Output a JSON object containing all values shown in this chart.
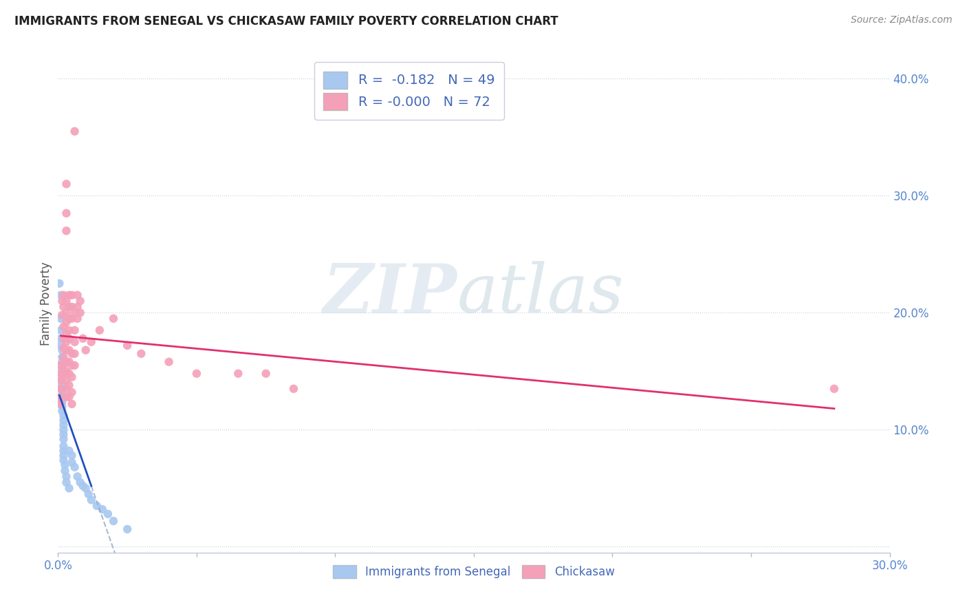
{
  "title": "IMMIGRANTS FROM SENEGAL VS CHICKASAW FAMILY POVERTY CORRELATION CHART",
  "source": "Source: ZipAtlas.com",
  "ylabel": "Family Poverty",
  "xlim": [
    0.0,
    0.3
  ],
  "ylim": [
    -0.005,
    0.42
  ],
  "blue_color": "#a8c8f0",
  "pink_color": "#f4a0b8",
  "blue_line_color": "#2050c0",
  "pink_line_color": "#e03070",
  "dashed_line_color": "#90a8c8",
  "blue_scatter": [
    [
      0.0005,
      0.225
    ],
    [
      0.001,
      0.215
    ],
    [
      0.001,
      0.195
    ],
    [
      0.001,
      0.185
    ],
    [
      0.001,
      0.178
    ],
    [
      0.001,
      0.172
    ],
    [
      0.0015,
      0.168
    ],
    [
      0.0015,
      0.162
    ],
    [
      0.0015,
      0.158
    ],
    [
      0.0015,
      0.152
    ],
    [
      0.0015,
      0.148
    ],
    [
      0.0015,
      0.143
    ],
    [
      0.0015,
      0.138
    ],
    [
      0.0015,
      0.135
    ],
    [
      0.0015,
      0.13
    ],
    [
      0.0015,
      0.127
    ],
    [
      0.0015,
      0.124
    ],
    [
      0.0015,
      0.12
    ],
    [
      0.0015,
      0.116
    ],
    [
      0.002,
      0.112
    ],
    [
      0.002,
      0.108
    ],
    [
      0.002,
      0.104
    ],
    [
      0.002,
      0.1
    ],
    [
      0.002,
      0.096
    ],
    [
      0.002,
      0.092
    ],
    [
      0.002,
      0.086
    ],
    [
      0.002,
      0.082
    ],
    [
      0.002,
      0.078
    ],
    [
      0.002,
      0.074
    ],
    [
      0.0025,
      0.07
    ],
    [
      0.0025,
      0.065
    ],
    [
      0.003,
      0.06
    ],
    [
      0.003,
      0.055
    ],
    [
      0.004,
      0.05
    ],
    [
      0.004,
      0.082
    ],
    [
      0.005,
      0.078
    ],
    [
      0.005,
      0.072
    ],
    [
      0.006,
      0.068
    ],
    [
      0.007,
      0.06
    ],
    [
      0.008,
      0.055
    ],
    [
      0.009,
      0.052
    ],
    [
      0.01,
      0.05
    ],
    [
      0.011,
      0.045
    ],
    [
      0.012,
      0.04
    ],
    [
      0.014,
      0.035
    ],
    [
      0.016,
      0.032
    ],
    [
      0.018,
      0.028
    ],
    [
      0.02,
      0.022
    ],
    [
      0.025,
      0.015
    ]
  ],
  "pink_scatter": [
    [
      0.001,
      0.155
    ],
    [
      0.001,
      0.148
    ],
    [
      0.001,
      0.142
    ],
    [
      0.001,
      0.135
    ],
    [
      0.001,
      0.128
    ],
    [
      0.001,
      0.122
    ],
    [
      0.0015,
      0.21
    ],
    [
      0.0015,
      0.198
    ],
    [
      0.002,
      0.215
    ],
    [
      0.002,
      0.205
    ],
    [
      0.002,
      0.188
    ],
    [
      0.002,
      0.178
    ],
    [
      0.002,
      0.17
    ],
    [
      0.002,
      0.162
    ],
    [
      0.002,
      0.155
    ],
    [
      0.002,
      0.148
    ],
    [
      0.003,
      0.285
    ],
    [
      0.003,
      0.31
    ],
    [
      0.003,
      0.27
    ],
    [
      0.003,
      0.21
    ],
    [
      0.003,
      0.2
    ],
    [
      0.003,
      0.192
    ],
    [
      0.003,
      0.182
    ],
    [
      0.003,
      0.175
    ],
    [
      0.003,
      0.168
    ],
    [
      0.003,
      0.158
    ],
    [
      0.003,
      0.15
    ],
    [
      0.003,
      0.142
    ],
    [
      0.003,
      0.135
    ],
    [
      0.003,
      0.128
    ],
    [
      0.004,
      0.215
    ],
    [
      0.004,
      0.205
    ],
    [
      0.004,
      0.195
    ],
    [
      0.004,
      0.185
    ],
    [
      0.004,
      0.178
    ],
    [
      0.004,
      0.168
    ],
    [
      0.004,
      0.158
    ],
    [
      0.004,
      0.148
    ],
    [
      0.004,
      0.138
    ],
    [
      0.004,
      0.128
    ],
    [
      0.005,
      0.215
    ],
    [
      0.005,
      0.205
    ],
    [
      0.005,
      0.195
    ],
    [
      0.005,
      0.165
    ],
    [
      0.005,
      0.155
    ],
    [
      0.005,
      0.145
    ],
    [
      0.005,
      0.132
    ],
    [
      0.005,
      0.122
    ],
    [
      0.006,
      0.355
    ],
    [
      0.006,
      0.2
    ],
    [
      0.006,
      0.185
    ],
    [
      0.006,
      0.175
    ],
    [
      0.006,
      0.165
    ],
    [
      0.006,
      0.155
    ],
    [
      0.007,
      0.215
    ],
    [
      0.007,
      0.205
    ],
    [
      0.007,
      0.195
    ],
    [
      0.008,
      0.21
    ],
    [
      0.008,
      0.2
    ],
    [
      0.009,
      0.178
    ],
    [
      0.01,
      0.168
    ],
    [
      0.012,
      0.175
    ],
    [
      0.015,
      0.185
    ],
    [
      0.02,
      0.195
    ],
    [
      0.025,
      0.172
    ],
    [
      0.03,
      0.165
    ],
    [
      0.04,
      0.158
    ],
    [
      0.05,
      0.148
    ],
    [
      0.065,
      0.148
    ],
    [
      0.075,
      0.148
    ],
    [
      0.085,
      0.135
    ],
    [
      0.28,
      0.135
    ]
  ]
}
